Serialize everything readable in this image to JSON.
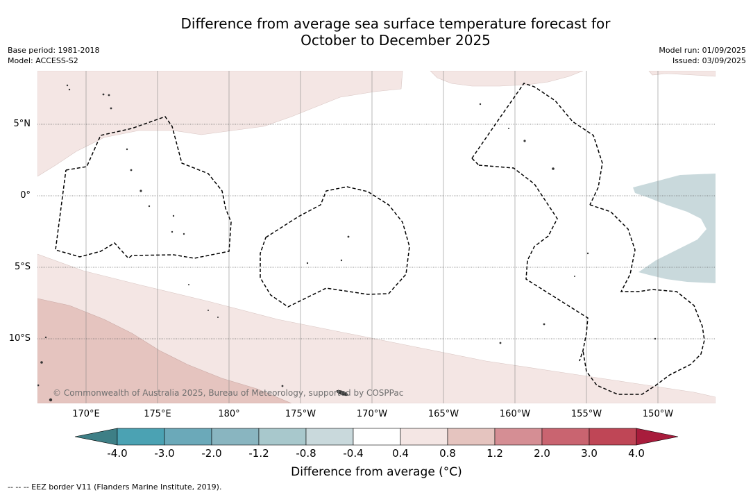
{
  "title_line1": "Difference from average sea surface temperature forecast for",
  "title_line2": "October to December 2025",
  "base_period": "Base period: 1981-2018",
  "model": "Model: ACCESS-S2",
  "model_run": "Model run: 01/09/2025",
  "issued": "Issued: 03/09/2025",
  "lat_labels": [
    "5°N",
    "0°",
    "5°S",
    "10°S"
  ],
  "lon_labels": [
    "170°E",
    "175°E",
    "180°",
    "175°W",
    "170°W",
    "165°W",
    "160°W",
    "155°W",
    "150°W"
  ],
  "copyright": "© Commonwealth of Australia 2025, Bureau of Meteorology, supported by COSPPac",
  "colorbar": {
    "ticks": [
      "-4.0",
      "-3.0",
      "-2.0",
      "-1.2",
      "-0.8",
      "-0.4",
      "0.4",
      "0.8",
      "1.2",
      "2.0",
      "3.0",
      "4.0"
    ],
    "colors": [
      "#3e7f86",
      "#4ba2b3",
      "#6ba9b9",
      "#89b5c0",
      "#a8c8cc",
      "#c9d9dc",
      "#ffffff",
      "#f4e6e4",
      "#e5c4bf",
      "#d58e94",
      "#c96470",
      "#bf4656",
      "#a81c3c"
    ],
    "title": "Difference from average (°C)"
  },
  "footnote": "-- -- -- EEZ border V11 (Flanders Marine Institute, 2019)."
}
